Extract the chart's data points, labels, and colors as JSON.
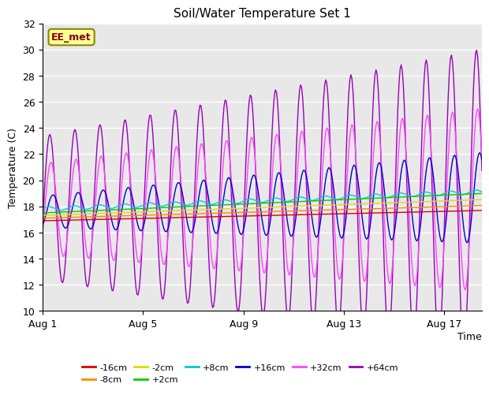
{
  "title": "Soil/Water Temperature Set 1",
  "xlabel": "Time",
  "ylabel": "Temperature (C)",
  "ylim": [
    10,
    32
  ],
  "yticks": [
    10,
    12,
    14,
    16,
    18,
    20,
    22,
    24,
    26,
    28,
    30,
    32
  ],
  "xlim_days": [
    0,
    17.5
  ],
  "xtick_positions": [
    0,
    4,
    8,
    12,
    16
  ],
  "xtick_labels": [
    "Aug 1",
    "Aug 5",
    "Aug 9",
    "Aug 13",
    "Aug 17"
  ],
  "annotation_text": "EE_met",
  "background_color": "#ffffff",
  "plot_bg_color": "#e8e8e8",
  "grid_color": "#ffffff",
  "colors": {
    "-16cm": "#dd0000",
    "-8cm": "#ff8800",
    "-2cm": "#dddd00",
    "+2cm": "#00cc00",
    "+8cm": "#00cccc",
    "+16cm": "#0000cc",
    "+32cm": "#ff44ff",
    "+64cm": "#9900bb"
  },
  "legend_order": [
    "-16cm",
    "-8cm",
    "-2cm",
    "+2cm",
    "+8cm",
    "+16cm",
    "+32cm",
    "+64cm"
  ]
}
